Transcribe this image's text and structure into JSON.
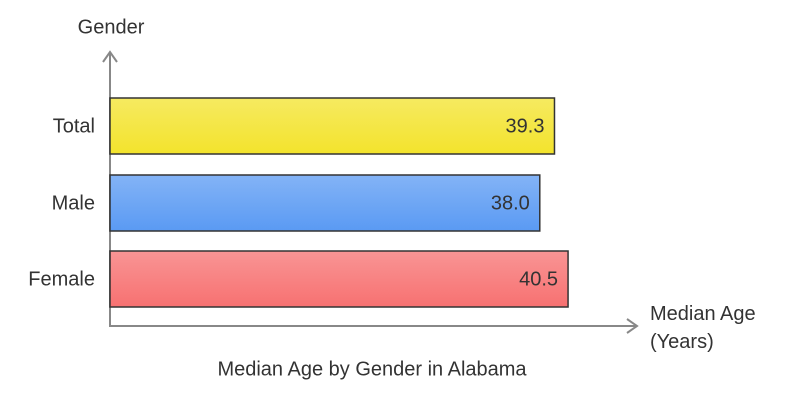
{
  "chart_data": {
    "type": "hbar",
    "title": "Median Age by Gender in Alabama",
    "x_label": "Median Age (Years)",
    "y_label": "Gender",
    "categories": [
      "Total",
      "Male",
      "Female"
    ],
    "values": [
      39.3,
      38.0,
      40.5
    ],
    "value_labels": [
      "39.3",
      "38.0",
      "40.5"
    ],
    "colors": [
      "#f3e32c",
      "#5a9af3",
      "#f77171"
    ],
    "xlim": [
      0,
      46.5
    ]
  }
}
